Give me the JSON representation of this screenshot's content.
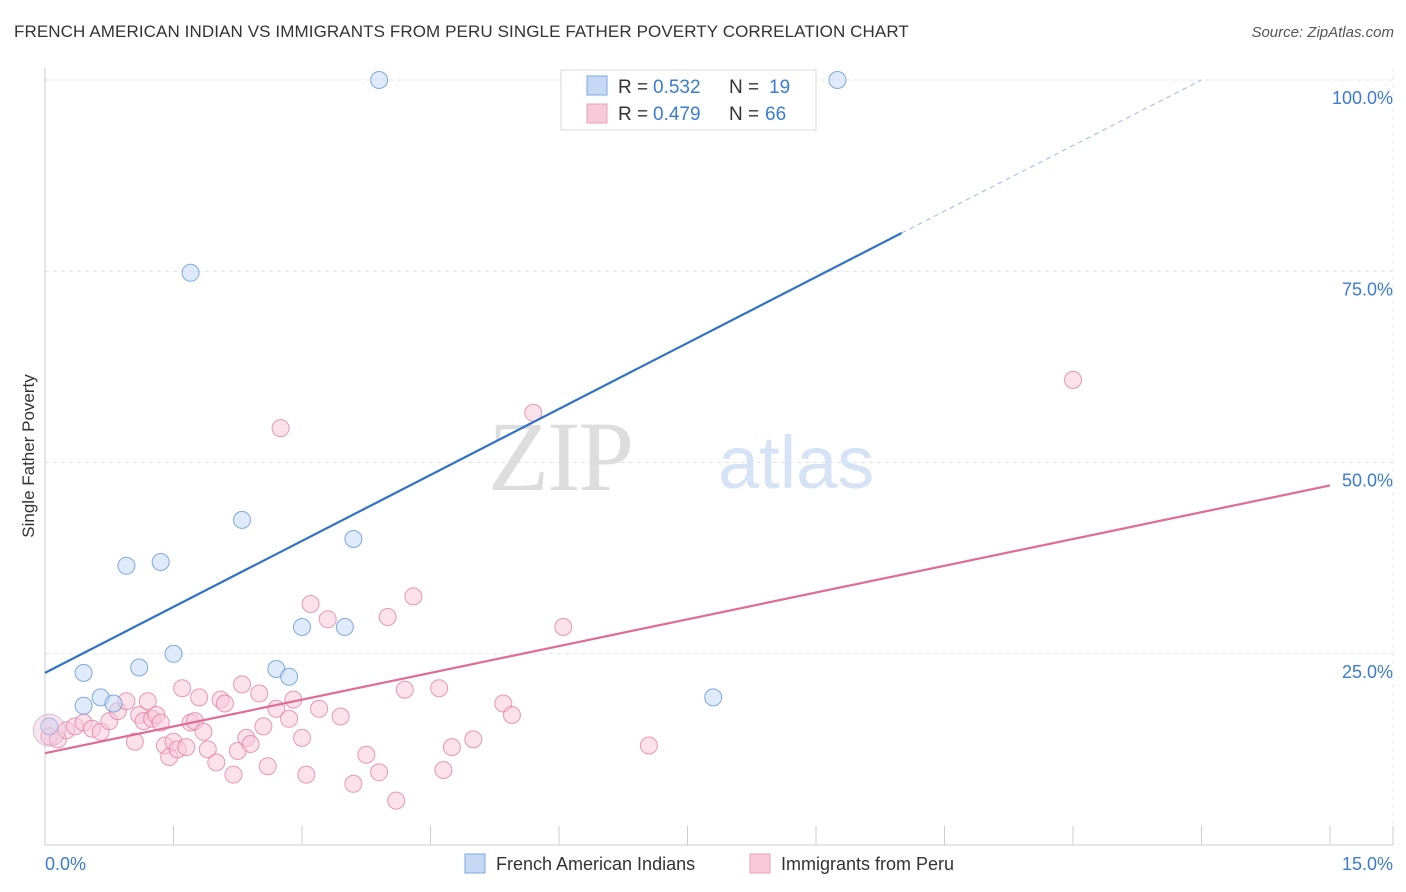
{
  "chart_data": {
    "type": "scatter",
    "title": "FRENCH AMERICAN INDIAN VS IMMIGRANTS FROM PERU SINGLE FATHER POVERTY CORRELATION CHART",
    "source": "Source: ZipAtlas.com",
    "xlabel": "",
    "ylabel": "Single Father Poverty",
    "xlim": [
      0,
      15
    ],
    "ylim": [
      0,
      100
    ],
    "x_tick_labels": [
      "0.0%",
      "15.0%"
    ],
    "y_tick_labels": [
      "25.0%",
      "50.0%",
      "75.0%",
      "100.0%"
    ],
    "y_ticks": [
      25,
      50,
      75,
      100
    ],
    "grid": true,
    "watermark": "ZIPatlas",
    "legend": [
      {
        "name": "French American Indians",
        "r_label": "R =",
        "r_value": "0.532",
        "n_label": "N =",
        "n_value": "19"
      },
      {
        "name": "Immigrants from Peru",
        "r_label": "R =",
        "r_value": "0.479",
        "n_label": "N =",
        "n_value": "66"
      }
    ],
    "series": [
      {
        "name": "French American Indians",
        "color": "#5b8fd6",
        "fill": "#c5d9f5",
        "line_color": "#2f72c8",
        "trend": {
          "x0": 0,
          "y0": 22.5,
          "x1": 10.0,
          "y1": 80.0,
          "dash_x1": 13.5,
          "dash_y1": 100.0
        },
        "points": [
          [
            0.05,
            15.5
          ],
          [
            0.45,
            18.2
          ],
          [
            0.65,
            19.3
          ],
          [
            0.8,
            18.5
          ],
          [
            0.45,
            22.5
          ],
          [
            0.95,
            36.5
          ],
          [
            1.35,
            37.0
          ],
          [
            1.5,
            25.0
          ],
          [
            1.1,
            23.2
          ],
          [
            2.3,
            42.5
          ],
          [
            1.7,
            74.8
          ],
          [
            3.9,
            100.0
          ],
          [
            9.25,
            100.0
          ],
          [
            2.7,
            23.0
          ],
          [
            2.85,
            22.0
          ],
          [
            3.0,
            28.5
          ],
          [
            3.5,
            28.5
          ],
          [
            3.6,
            40.0
          ],
          [
            7.8,
            19.3
          ]
        ]
      },
      {
        "name": "Immigrants from Peru",
        "color": "#e27a9c",
        "fill": "#f8c9d8",
        "line_color": "#e06b94",
        "trend": {
          "x0": 0,
          "y0": 12.0,
          "x1": 15.0,
          "y1": 47.0
        },
        "points": [
          [
            0.05,
            14.2
          ],
          [
            0.15,
            13.8
          ],
          [
            0.25,
            15.0
          ],
          [
            0.35,
            15.5
          ],
          [
            0.45,
            16.0
          ],
          [
            0.55,
            15.2
          ],
          [
            0.65,
            14.8
          ],
          [
            0.75,
            16.2
          ],
          [
            0.85,
            17.5
          ],
          [
            0.95,
            18.8
          ],
          [
            1.05,
            13.5
          ],
          [
            1.1,
            17.0
          ],
          [
            1.15,
            16.2
          ],
          [
            1.2,
            18.8
          ],
          [
            1.25,
            16.5
          ],
          [
            1.3,
            17.0
          ],
          [
            1.35,
            16.0
          ],
          [
            1.4,
            13.0
          ],
          [
            1.45,
            11.5
          ],
          [
            1.5,
            13.5
          ],
          [
            1.55,
            12.5
          ],
          [
            1.6,
            20.5
          ],
          [
            1.65,
            12.8
          ],
          [
            1.7,
            16.0
          ],
          [
            1.75,
            16.2
          ],
          [
            1.8,
            19.3
          ],
          [
            1.85,
            14.8
          ],
          [
            1.9,
            12.5
          ],
          [
            2.0,
            10.8
          ],
          [
            2.05,
            19.0
          ],
          [
            2.1,
            18.5
          ],
          [
            2.2,
            9.2
          ],
          [
            2.25,
            12.3
          ],
          [
            2.3,
            21.0
          ],
          [
            2.35,
            14.0
          ],
          [
            2.4,
            13.2
          ],
          [
            2.5,
            19.8
          ],
          [
            2.55,
            15.5
          ],
          [
            2.6,
            10.3
          ],
          [
            2.7,
            17.8
          ],
          [
            2.75,
            54.5
          ],
          [
            2.85,
            16.5
          ],
          [
            2.9,
            19.0
          ],
          [
            3.0,
            14.0
          ],
          [
            3.05,
            9.2
          ],
          [
            3.1,
            31.5
          ],
          [
            3.2,
            17.8
          ],
          [
            3.3,
            29.5
          ],
          [
            3.45,
            16.8
          ],
          [
            3.6,
            8.0
          ],
          [
            3.75,
            11.8
          ],
          [
            3.9,
            9.5
          ],
          [
            4.0,
            29.8
          ],
          [
            4.1,
            5.8
          ],
          [
            4.2,
            20.3
          ],
          [
            4.3,
            32.5
          ],
          [
            4.6,
            20.5
          ],
          [
            4.65,
            9.8
          ],
          [
            4.75,
            12.8
          ],
          [
            5.0,
            13.8
          ],
          [
            5.35,
            18.5
          ],
          [
            5.45,
            17.0
          ],
          [
            5.7,
            56.5
          ],
          [
            6.05,
            28.5
          ],
          [
            7.05,
            13.0
          ],
          [
            12.0,
            60.8
          ]
        ]
      }
    ]
  }
}
